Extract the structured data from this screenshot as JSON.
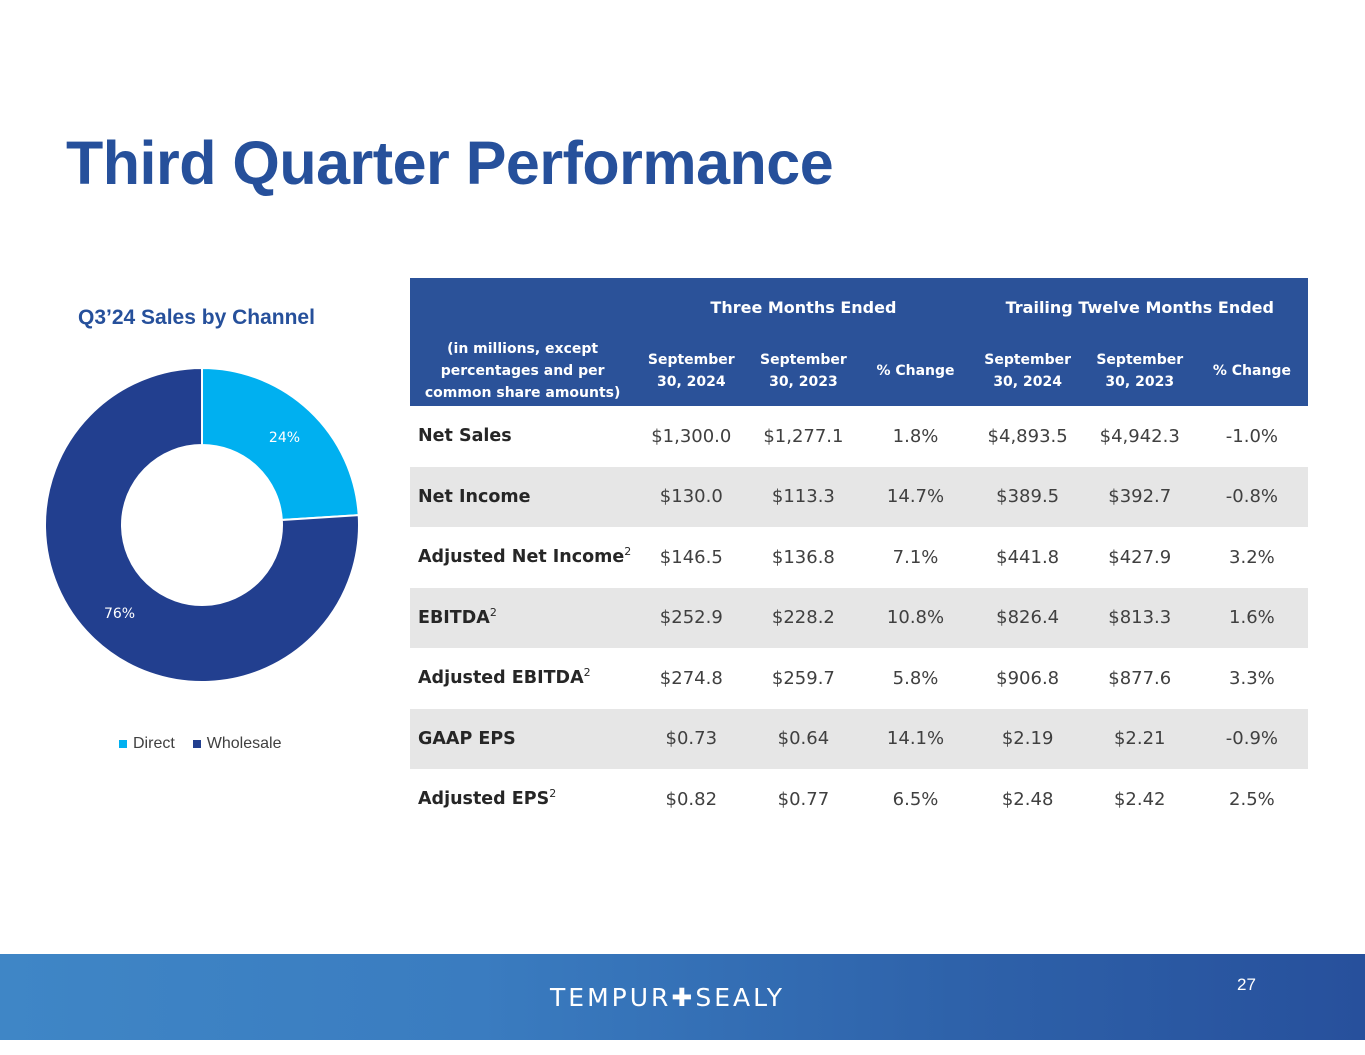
{
  "slide": {
    "title": "Third Quarter Performance",
    "page_number": "27",
    "logo": "TEMPUR✚SEALY"
  },
  "colors": {
    "primary": "#26509b",
    "direct": "#00b0f0",
    "wholesale": "#223f8f"
  },
  "chart_data": {
    "type": "pie",
    "title": "Q3’24 Sales by Channel",
    "donut": true,
    "categories": [
      "Direct",
      "Wholesale"
    ],
    "values": [
      24,
      76
    ],
    "labels": [
      "24%",
      "76%"
    ],
    "legend": "bottom"
  },
  "table": {
    "group_headers": [
      "Three Months Ended",
      "Trailing Twelve Months Ended"
    ],
    "first_col_header": "(in millions, except percentages and per common share amounts)",
    "col_headers": [
      "September 30, 2024",
      "September 30, 2023",
      "% Change",
      "September 30, 2024",
      "September 30, 2023",
      "% Change"
    ],
    "rows": [
      {
        "label": "Net Sales",
        "sup": "",
        "values": [
          "$1,300.0",
          "$1,277.1",
          "1.8%",
          "$4,893.5",
          "$4,942.3",
          "-1.0%"
        ]
      },
      {
        "label": "Net Income",
        "sup": "",
        "values": [
          "$130.0",
          "$113.3",
          "14.7%",
          "$389.5",
          "$392.7",
          "-0.8%"
        ]
      },
      {
        "label": "Adjusted Net Income",
        "sup": "2",
        "values": [
          "$146.5",
          "$136.8",
          "7.1%",
          "$441.8",
          "$427.9",
          "3.2%"
        ]
      },
      {
        "label": "EBITDA",
        "sup": "2",
        "values": [
          "$252.9",
          "$228.2",
          "10.8%",
          "$826.4",
          "$813.3",
          "1.6%"
        ]
      },
      {
        "label": "Adjusted EBITDA",
        "sup": "2",
        "values": [
          "$274.8",
          "$259.7",
          "5.8%",
          "$906.8",
          "$877.6",
          "3.3%"
        ]
      },
      {
        "label": "GAAP EPS",
        "sup": "",
        "values": [
          "$0.73",
          "$0.64",
          "14.1%",
          "$2.19",
          "$2.21",
          "-0.9%"
        ]
      },
      {
        "label": "Adjusted EPS",
        "sup": "2",
        "values": [
          "$0.82",
          "$0.77",
          "6.5%",
          "$2.48",
          "$2.42",
          "2.5%"
        ]
      }
    ]
  }
}
